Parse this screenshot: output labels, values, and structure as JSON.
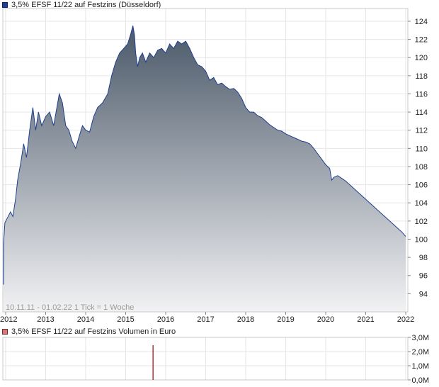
{
  "chart_data": [
    {
      "type": "area",
      "title": "3,5% EFSF 11/22 auf Festzins (Düsseldorf)",
      "legend": "3,5% EFSF 11/22 auf Festzins (Düsseldorf)",
      "info": "10.11.11 - 01.02.22   1 Tick = 1 Woche",
      "x_ticks": [
        "2012",
        "2013",
        "2014",
        "2015",
        "2016",
        "2017",
        "2018",
        "2019",
        "2020",
        "2021",
        "2022"
      ],
      "y_ticks": [
        94,
        96,
        98,
        100,
        102,
        104,
        106,
        108,
        110,
        112,
        114,
        116,
        118,
        120,
        122,
        124
      ],
      "xlim": [
        2012.0,
        2022.0
      ],
      "ylim": [
        92.0,
        125.4
      ],
      "grid": true,
      "series": [
        {
          "name": "3,5% EFSF 11/22 auf Festzins",
          "color": "#1f3f8f",
          "points": [
            [
              2011.86,
              98.2
            ],
            [
              2011.9,
              95.0
            ],
            [
              2011.94,
              99.5
            ],
            [
              2011.98,
              101.8
            ],
            [
              2012.05,
              102.4
            ],
            [
              2012.12,
              103.0
            ],
            [
              2012.18,
              102.5
            ],
            [
              2012.25,
              104.5
            ],
            [
              2012.3,
              106.5
            ],
            [
              2012.38,
              108.5
            ],
            [
              2012.45,
              110.5
            ],
            [
              2012.52,
              109.0
            ],
            [
              2012.6,
              112.0
            ],
            [
              2012.68,
              114.5
            ],
            [
              2012.75,
              112.0
            ],
            [
              2012.82,
              114.0
            ],
            [
              2012.9,
              112.5
            ],
            [
              2013.0,
              113.5
            ],
            [
              2013.1,
              114.0
            ],
            [
              2013.2,
              112.5
            ],
            [
              2013.28,
              114.5
            ],
            [
              2013.34,
              116.0
            ],
            [
              2013.42,
              115.0
            ],
            [
              2013.5,
              112.5
            ],
            [
              2013.58,
              112.0
            ],
            [
              2013.66,
              110.8
            ],
            [
              2013.75,
              110.0
            ],
            [
              2013.85,
              111.5
            ],
            [
              2013.92,
              112.5
            ],
            [
              2014.0,
              112.0
            ],
            [
              2014.1,
              111.8
            ],
            [
              2014.2,
              113.5
            ],
            [
              2014.3,
              114.5
            ],
            [
              2014.42,
              115.0
            ],
            [
              2014.55,
              116.0
            ],
            [
              2014.65,
              118.0
            ],
            [
              2014.75,
              119.5
            ],
            [
              2014.85,
              120.5
            ],
            [
              2014.95,
              121.0
            ],
            [
              2015.05,
              121.5
            ],
            [
              2015.12,
              122.5
            ],
            [
              2015.18,
              123.5
            ],
            [
              2015.22,
              122.5
            ],
            [
              2015.25,
              120.5
            ],
            [
              2015.3,
              119.0
            ],
            [
              2015.35,
              120.0
            ],
            [
              2015.42,
              120.5
            ],
            [
              2015.5,
              119.5
            ],
            [
              2015.6,
              120.5
            ],
            [
              2015.7,
              120.0
            ],
            [
              2015.8,
              120.8
            ],
            [
              2015.9,
              121.0
            ],
            [
              2016.0,
              120.5
            ],
            [
              2016.1,
              121.5
            ],
            [
              2016.2,
              121.0
            ],
            [
              2016.3,
              121.8
            ],
            [
              2016.4,
              121.5
            ],
            [
              2016.5,
              121.8
            ],
            [
              2016.6,
              121.0
            ],
            [
              2016.7,
              120.0
            ],
            [
              2016.8,
              119.2
            ],
            [
              2016.9,
              119.0
            ],
            [
              2017.0,
              118.5
            ],
            [
              2017.1,
              117.5
            ],
            [
              2017.2,
              117.8
            ],
            [
              2017.3,
              117.0
            ],
            [
              2017.4,
              117.2
            ],
            [
              2017.5,
              116.8
            ],
            [
              2017.6,
              116.5
            ],
            [
              2017.7,
              116.6
            ],
            [
              2017.8,
              116.2
            ],
            [
              2017.9,
              115.5
            ],
            [
              2018.0,
              114.5
            ],
            [
              2018.1,
              114.0
            ],
            [
              2018.2,
              114.0
            ],
            [
              2018.3,
              113.6
            ],
            [
              2018.4,
              113.4
            ],
            [
              2018.5,
              113.0
            ],
            [
              2018.6,
              112.6
            ],
            [
              2018.7,
              112.3
            ],
            [
              2018.8,
              112.0
            ],
            [
              2018.9,
              111.9
            ],
            [
              2019.0,
              111.6
            ],
            [
              2019.1,
              111.4
            ],
            [
              2019.2,
              111.2
            ],
            [
              2019.3,
              111.0
            ],
            [
              2019.4,
              110.8
            ],
            [
              2019.5,
              110.7
            ],
            [
              2019.6,
              110.5
            ],
            [
              2019.7,
              110.0
            ],
            [
              2019.8,
              109.4
            ],
            [
              2019.9,
              108.8
            ],
            [
              2020.0,
              108.2
            ],
            [
              2020.1,
              107.8
            ],
            [
              2020.15,
              106.5
            ],
            [
              2020.2,
              106.8
            ],
            [
              2020.3,
              107.0
            ],
            [
              2020.4,
              106.7
            ],
            [
              2020.5,
              106.4
            ],
            [
              2020.6,
              106.0
            ],
            [
              2020.7,
              105.6
            ],
            [
              2020.8,
              105.2
            ],
            [
              2020.9,
              104.8
            ],
            [
              2021.0,
              104.4
            ],
            [
              2021.1,
              104.0
            ],
            [
              2021.2,
              103.6
            ],
            [
              2021.3,
              103.2
            ],
            [
              2021.4,
              102.8
            ],
            [
              2021.5,
              102.4
            ],
            [
              2021.6,
              102.0
            ],
            [
              2021.7,
              101.6
            ],
            [
              2021.8,
              101.2
            ],
            [
              2021.9,
              100.8
            ],
            [
              2022.0,
              100.3
            ]
          ]
        }
      ]
    },
    {
      "type": "bar",
      "title": "3,5% EFSF 11/22 auf Festzins Volumen in Euro",
      "legend": "3,5% EFSF 11/22 auf Festzins Volumen in Euro",
      "y_ticks": [
        "0,0M",
        "1,0M",
        "2,0M",
        "3,0M"
      ],
      "ylim": [
        0,
        3.0
      ],
      "x_ticks": [
        "2012",
        "2013",
        "2014",
        "2015",
        "2016",
        "2017",
        "2018",
        "2019",
        "2020",
        "2021",
        "2022"
      ],
      "series": [
        {
          "name": "Volumen in Euro",
          "color": "#b0353a",
          "points": [
            [
              2015.68,
              2.45
            ]
          ]
        }
      ]
    }
  ],
  "colors": {
    "line": "#1f3f8f",
    "fill_top": "#4a5868",
    "fill_bottom": "#f2f2f4",
    "volume_bar": "#b0353a",
    "grid": "#e6e6e6"
  }
}
